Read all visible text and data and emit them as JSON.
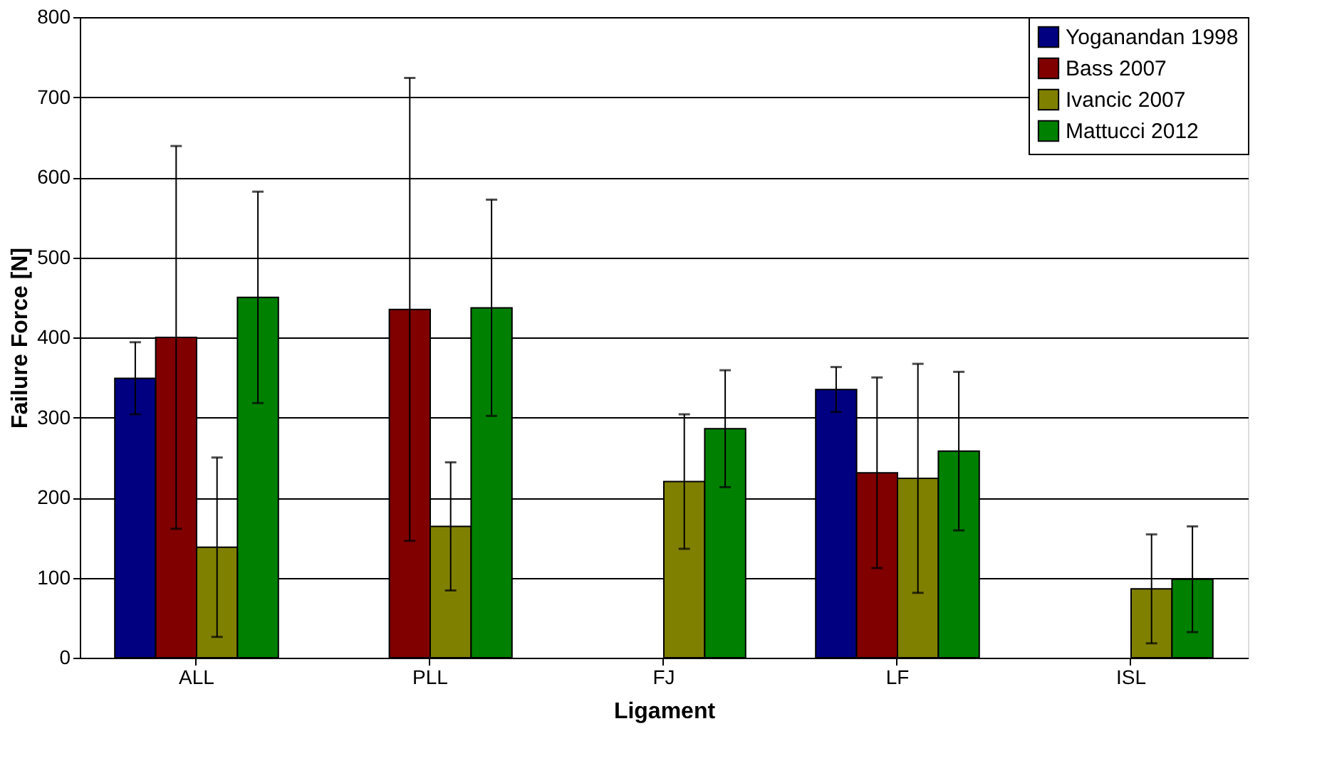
{
  "chart_data": {
    "type": "bar",
    "xlabel": "Ligament",
    "ylabel": "Failure Force [N]",
    "categories": [
      "ALL",
      "PLL",
      "FJ",
      "LF",
      "ISL"
    ],
    "series": [
      {
        "name": "Yoganandan 1998",
        "color": "#000080",
        "values": [
          349,
          null,
          null,
          335,
          null
        ],
        "errors": [
          45,
          null,
          null,
          28,
          null
        ]
      },
      {
        "name": "Bass 2007",
        "color": "#800000",
        "values": [
          400,
          435,
          null,
          231,
          null
        ],
        "errors": [
          239,
          289,
          null,
          119,
          null
        ]
      },
      {
        "name": "Ivancic 2007",
        "color": "#808000",
        "values": [
          138,
          164,
          220,
          224,
          86
        ],
        "errors": [
          112,
          80,
          84,
          143,
          68
        ]
      },
      {
        "name": "Mattucci 2012",
        "color": "#008000",
        "values": [
          450,
          437,
          286,
          258,
          98
        ],
        "errors": [
          132,
          135,
          73,
          99,
          66
        ]
      }
    ],
    "ylim": [
      0,
      800
    ],
    "yticks": [
      0,
      100,
      200,
      300,
      400,
      500,
      600,
      700,
      800
    ],
    "grid": "y",
    "legend": "top right"
  }
}
